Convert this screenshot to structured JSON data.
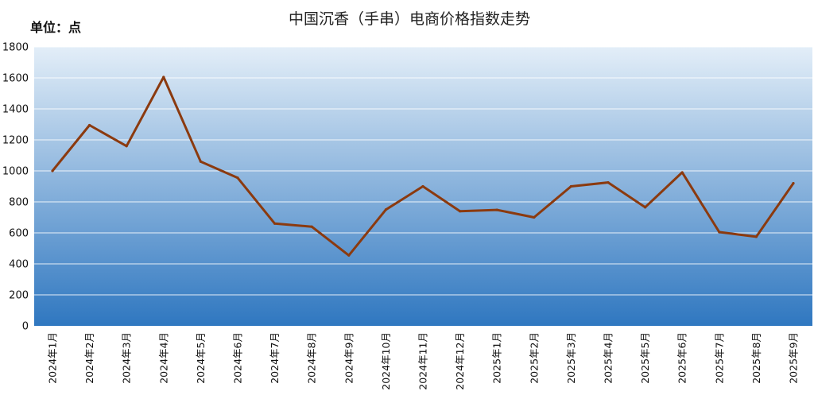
{
  "chart_data": {
    "type": "line",
    "title": "中国沉香（手串）电商价格指数走势",
    "unit_label": "单位：点",
    "xlabel": "",
    "ylabel": "",
    "ylim": [
      0,
      1800
    ],
    "y_ticks": [
      0,
      200,
      400,
      600,
      800,
      1000,
      1200,
      1400,
      1600,
      1800
    ],
    "grid": true,
    "legend": "none",
    "categories": [
      "2024年1月",
      "2024年2月",
      "2024年3月",
      "2024年4月",
      "2024年5月",
      "2024年6月",
      "2024年7月",
      "2024年8月",
      "2024年9月",
      "2024年10月",
      "2024年11月",
      "2024年12月",
      "2025年1月",
      "2025年2月",
      "2025年3月",
      "2025年4月",
      "2025年5月",
      "2025年6月",
      "2025年7月",
      "2025年8月",
      "2025年9月"
    ],
    "series": [
      {
        "values": [
          1000,
          1295,
          1160,
          1605,
          1060,
          955,
          660,
          640,
          455,
          750,
          900,
          740,
          748,
          700,
          900,
          925,
          765,
          990,
          605,
          575,
          920
        ]
      }
    ],
    "colors": {
      "line": "#8B3A0F",
      "background_top": "#E3EEF8",
      "background_bottom": "#2F77C0",
      "gridline": "#FFFFFF"
    }
  }
}
